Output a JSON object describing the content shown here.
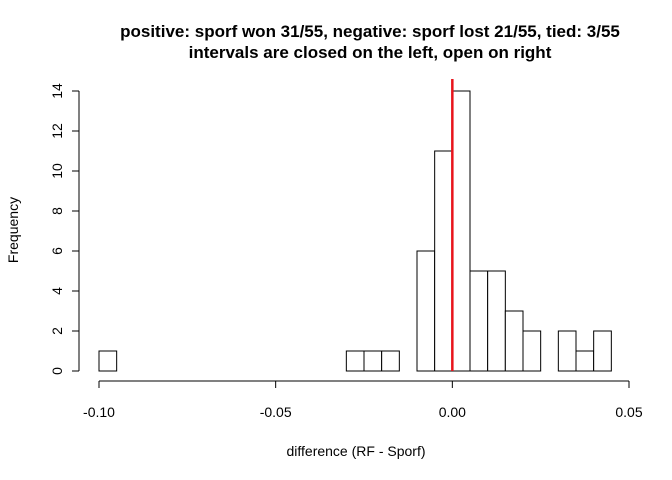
{
  "chart_data": {
    "type": "bar",
    "title": "positive: sporf won 31/55, negative: sporf lost 21/55, tied: 3/55",
    "subtitle": "intervals are closed on the left, open on right",
    "xlabel": "difference (RF - Sporf)",
    "ylabel": "Frequency",
    "xlim": [
      -0.1,
      0.05
    ],
    "ylim": [
      0,
      14
    ],
    "x_ticks": [
      "-0.10",
      "-0.05",
      "0.00",
      "0.05"
    ],
    "x_tick_values": [
      -0.1,
      -0.05,
      0.0,
      0.05
    ],
    "y_ticks": [
      "0",
      "2",
      "4",
      "6",
      "8",
      "10",
      "12",
      "14"
    ],
    "y_tick_values": [
      0,
      2,
      4,
      6,
      8,
      10,
      12,
      14
    ],
    "bin_width": 0.005,
    "bins": [
      {
        "start": -0.1,
        "count": 1
      },
      {
        "start": -0.095,
        "count": 0
      },
      {
        "start": -0.09,
        "count": 0
      },
      {
        "start": -0.085,
        "count": 0
      },
      {
        "start": -0.08,
        "count": 0
      },
      {
        "start": -0.075,
        "count": 0
      },
      {
        "start": -0.07,
        "count": 0
      },
      {
        "start": -0.065,
        "count": 0
      },
      {
        "start": -0.06,
        "count": 0
      },
      {
        "start": -0.055,
        "count": 0
      },
      {
        "start": -0.05,
        "count": 0
      },
      {
        "start": -0.045,
        "count": 0
      },
      {
        "start": -0.04,
        "count": 0
      },
      {
        "start": -0.035,
        "count": 0
      },
      {
        "start": -0.03,
        "count": 1
      },
      {
        "start": -0.025,
        "count": 1
      },
      {
        "start": -0.02,
        "count": 1
      },
      {
        "start": -0.015,
        "count": 0
      },
      {
        "start": -0.01,
        "count": 6
      },
      {
        "start": -0.005,
        "count": 11
      },
      {
        "start": 0.0,
        "count": 14
      },
      {
        "start": 0.005,
        "count": 5
      },
      {
        "start": 0.01,
        "count": 5
      },
      {
        "start": 0.015,
        "count": 3
      },
      {
        "start": 0.02,
        "count": 2
      },
      {
        "start": 0.025,
        "count": 0
      },
      {
        "start": 0.03,
        "count": 2
      },
      {
        "start": 0.035,
        "count": 1
      },
      {
        "start": 0.04,
        "count": 2
      }
    ],
    "reference_line": {
      "x": 0.0,
      "color": "#e8141c"
    },
    "bar_fill": "#ffffff",
    "bar_stroke": "#000000",
    "grid": false
  }
}
